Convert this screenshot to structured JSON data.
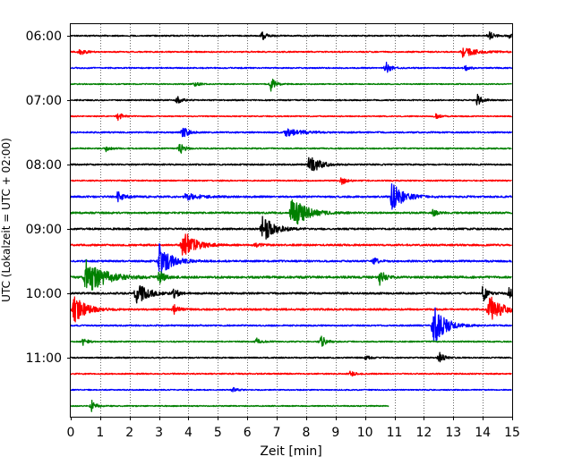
{
  "chart_data": {
    "type": "line",
    "title": "",
    "xlabel": "Zeit  [min]",
    "ylabel": "UTC (Lokalzeit = UTC + 02:00)",
    "xlim": [
      0,
      15
    ],
    "x_ticks": [
      "0",
      "1",
      "2",
      "3",
      "4",
      "5",
      "6",
      "7",
      "8",
      "9",
      "10",
      "11",
      "12",
      "13",
      "14",
      "15"
    ],
    "y_ticks": [
      "06:00",
      "07:00",
      "08:00",
      "09:00",
      "10:00",
      "11:00"
    ],
    "row_interval_min": 15,
    "first_row_time": "06:00",
    "grid": "vertical dotted at each minute",
    "trace_colors": [
      "#000000",
      "#ff0000",
      "#0000ff",
      "#008000"
    ],
    "last_row_end_min": 10.8,
    "series": [
      {
        "time": "06:00",
        "color": "#000000",
        "noise": 0.7,
        "events": [
          {
            "t": 6.5,
            "amp": 5
          },
          {
            "t": 14.2,
            "amp": 6
          },
          {
            "t": 14.9,
            "amp": 4
          }
        ]
      },
      {
        "time": "06:15",
        "color": "#ff0000",
        "noise": 0.7,
        "events": [
          {
            "t": 0.3,
            "amp": 6
          },
          {
            "t": 13.3,
            "amp": 6,
            "dur": 1.2
          }
        ]
      },
      {
        "time": "06:30",
        "color": "#0000ff",
        "noise": 0.7,
        "events": [
          {
            "t": 10.7,
            "amp": 8
          },
          {
            "t": 13.4,
            "amp": 3
          }
        ]
      },
      {
        "time": "06:45",
        "color": "#008000",
        "noise": 0.6,
        "events": [
          {
            "t": 6.8,
            "amp": 8
          },
          {
            "t": 4.2,
            "amp": 3
          }
        ]
      },
      {
        "time": "07:00",
        "color": "#000000",
        "noise": 0.7,
        "events": [
          {
            "t": 3.6,
            "amp": 5
          },
          {
            "t": 13.8,
            "amp": 7
          }
        ]
      },
      {
        "time": "07:15",
        "color": "#ff0000",
        "noise": 0.6,
        "events": [
          {
            "t": 1.6,
            "amp": 5
          },
          {
            "t": 12.4,
            "amp": 3
          }
        ]
      },
      {
        "time": "07:30",
        "color": "#0000ff",
        "noise": 0.8,
        "events": [
          {
            "t": 3.8,
            "amp": 10
          },
          {
            "t": 7.3,
            "amp": 4,
            "dur": 1.5
          }
        ]
      },
      {
        "time": "07:45",
        "color": "#008000",
        "noise": 0.7,
        "events": [
          {
            "t": 3.7,
            "amp": 7
          },
          {
            "t": 1.2,
            "amp": 3
          }
        ]
      },
      {
        "time": "08:00",
        "color": "#000000",
        "noise": 0.8,
        "events": [
          {
            "t": 8.1,
            "amp": 14,
            "dur": 0.8
          }
        ]
      },
      {
        "time": "08:15",
        "color": "#ff0000",
        "noise": 0.7,
        "events": [
          {
            "t": 9.2,
            "amp": 5
          }
        ]
      },
      {
        "time": "08:30",
        "color": "#0000ff",
        "noise": 1.0,
        "events": [
          {
            "t": 1.6,
            "amp": 9
          },
          {
            "t": 3.9,
            "amp": 4,
            "dur": 1.2
          },
          {
            "t": 10.9,
            "amp": 16,
            "dur": 1.0
          }
        ]
      },
      {
        "time": "08:45",
        "color": "#008000",
        "noise": 1.0,
        "events": [
          {
            "t": 7.5,
            "amp": 20,
            "dur": 1.2
          },
          {
            "t": 12.3,
            "amp": 4
          }
        ]
      },
      {
        "time": "09:00",
        "color": "#000000",
        "noise": 1.0,
        "events": [
          {
            "t": 6.5,
            "amp": 16,
            "dur": 1.0
          }
        ]
      },
      {
        "time": "09:15",
        "color": "#ff0000",
        "noise": 1.0,
        "events": [
          {
            "t": 3.8,
            "amp": 18,
            "dur": 1.0
          },
          {
            "t": 6.3,
            "amp": 3
          }
        ]
      },
      {
        "time": "09:30",
        "color": "#0000ff",
        "noise": 1.0,
        "events": [
          {
            "t": 3.0,
            "amp": 20,
            "dur": 1.0
          },
          {
            "t": 10.3,
            "amp": 4
          }
        ]
      },
      {
        "time": "09:45",
        "color": "#008000",
        "noise": 1.2,
        "events": [
          {
            "t": 0.5,
            "amp": 22,
            "dur": 1.5
          },
          {
            "t": 3.0,
            "amp": 8
          },
          {
            "t": 10.5,
            "amp": 10
          }
        ]
      },
      {
        "time": "10:00",
        "color": "#000000",
        "noise": 1.0,
        "events": [
          {
            "t": 2.2,
            "amp": 16,
            "dur": 0.9
          },
          {
            "t": 3.5,
            "amp": 6
          },
          {
            "t": 14.0,
            "amp": 10
          },
          {
            "t": 14.9,
            "amp": 8
          }
        ]
      },
      {
        "time": "10:15",
        "color": "#ff0000",
        "noise": 1.0,
        "events": [
          {
            "t": 0.1,
            "amp": 16,
            "dur": 1.0
          },
          {
            "t": 3.5,
            "amp": 6
          },
          {
            "t": 14.2,
            "amp": 18,
            "dur": 1.0
          }
        ]
      },
      {
        "time": "10:30",
        "color": "#0000ff",
        "noise": 0.8,
        "events": [
          {
            "t": 12.3,
            "amp": 26,
            "dur": 1.0
          }
        ]
      },
      {
        "time": "10:45",
        "color": "#008000",
        "noise": 0.7,
        "events": [
          {
            "t": 0.4,
            "amp": 5
          },
          {
            "t": 6.3,
            "amp": 4
          },
          {
            "t": 8.5,
            "amp": 8
          }
        ]
      },
      {
        "time": "11:00",
        "color": "#000000",
        "noise": 0.7,
        "events": [
          {
            "t": 12.5,
            "amp": 7
          },
          {
            "t": 10.0,
            "amp": 3
          }
        ]
      },
      {
        "time": "11:15",
        "color": "#ff0000",
        "noise": 0.7,
        "events": [
          {
            "t": 9.5,
            "amp": 3
          }
        ]
      },
      {
        "time": "11:30",
        "color": "#0000ff",
        "noise": 0.6,
        "events": [
          {
            "t": 5.5,
            "amp": 3
          }
        ]
      },
      {
        "time": "11:45",
        "color": "#008000",
        "noise": 0.6,
        "events": [
          {
            "t": 0.7,
            "amp": 7
          }
        ]
      }
    ]
  }
}
